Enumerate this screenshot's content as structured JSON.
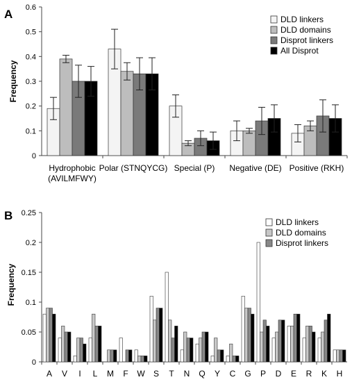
{
  "chart_data": [
    {
      "type": "bar",
      "panel_label": "A",
      "ylabel": "Frequency",
      "ylim": [
        0,
        0.6
      ],
      "yticks": [
        "0",
        "0.1",
        "0.2",
        "0.3",
        "0.4",
        "0.5",
        "0.6"
      ],
      "categories": [
        [
          "Hydrophobic",
          "(AVILMFWY)"
        ],
        [
          "Polar (STNQYCG)"
        ],
        [
          "Special (P)"
        ],
        [
          "Negative (DE)"
        ],
        [
          "Positive (RKH)"
        ]
      ],
      "series": [
        {
          "name": "DLD linkers",
          "color": "#f4f4f4",
          "values": [
            0.19,
            0.43,
            0.2,
            0.1,
            0.09
          ],
          "errors": [
            0.045,
            0.08,
            0.045,
            0.04,
            0.035
          ]
        },
        {
          "name": "DLD domains",
          "color": "#bdbdbd",
          "values": [
            0.39,
            0.34,
            0.05,
            0.1,
            0.12
          ],
          "errors": [
            0.015,
            0.035,
            0.01,
            0.01,
            0.02
          ]
        },
        {
          "name": "Disprot linkers",
          "color": "#7a7a7a",
          "values": [
            0.3,
            0.33,
            0.07,
            0.14,
            0.16
          ],
          "errors": [
            0.065,
            0.065,
            0.03,
            0.055,
            0.065
          ]
        },
        {
          "name": "All Disprot",
          "color": "#000000",
          "values": [
            0.3,
            0.33,
            0.06,
            0.15,
            0.15
          ],
          "errors": [
            0.06,
            0.065,
            0.035,
            0.055,
            0.055
          ]
        }
      ],
      "legend_position": "top-right",
      "grid": false
    },
    {
      "type": "bar",
      "panel_label": "B",
      "ylabel": "Frequency",
      "ylim": [
        0,
        0.25
      ],
      "yticks": [
        "0",
        "0.05",
        "0.1",
        "0.15",
        "0.2",
        "0.25"
      ],
      "categories": [
        "A",
        "V",
        "I",
        "L",
        "M",
        "F",
        "W",
        "S",
        "T",
        "N",
        "Q",
        "Y",
        "C",
        "G",
        "P",
        "D",
        "E",
        "R",
        "K",
        "H"
      ],
      "series": [
        {
          "name": "DLD linkers",
          "color": "#ffffff",
          "values": [
            0.08,
            0.04,
            0.01,
            0.04,
            0.0,
            0.04,
            0.02,
            0.11,
            0.15,
            0.02,
            0.03,
            0.01,
            0.01,
            0.11,
            0.2,
            0.04,
            0.06,
            0.04,
            0.04,
            0.02
          ]
        },
        {
          "name": "DLD domains",
          "color": "#c8c8c8",
          "values": [
            0.09,
            0.06,
            0.04,
            0.08,
            0.02,
            0.0,
            0.01,
            0.07,
            0.07,
            0.05,
            0.04,
            0.04,
            0.03,
            0.09,
            0.05,
            0.05,
            0.06,
            0.06,
            0.05,
            0.02
          ]
        },
        {
          "name": "Disprot linkers",
          "color": "#888888",
          "values": [
            0.09,
            0.05,
            0.04,
            0.06,
            0.02,
            0.02,
            0.01,
            0.09,
            0.04,
            0.04,
            0.05,
            0.02,
            0.01,
            0.09,
            0.07,
            0.07,
            0.08,
            0.06,
            0.07,
            0.02
          ]
        },
        {
          "name": "All Disprot",
          "color": "#000000",
          "values": [
            0.08,
            0.05,
            0.03,
            0.06,
            0.02,
            0.02,
            0.01,
            0.09,
            0.06,
            0.04,
            0.05,
            0.02,
            0.01,
            0.08,
            0.06,
            0.07,
            0.08,
            0.05,
            0.08,
            0.02
          ]
        }
      ],
      "legend_entries": [
        "DLD linkers",
        "DLD domains",
        "Disprot linkers"
      ],
      "legend_position": "top-right",
      "grid": false
    }
  ]
}
